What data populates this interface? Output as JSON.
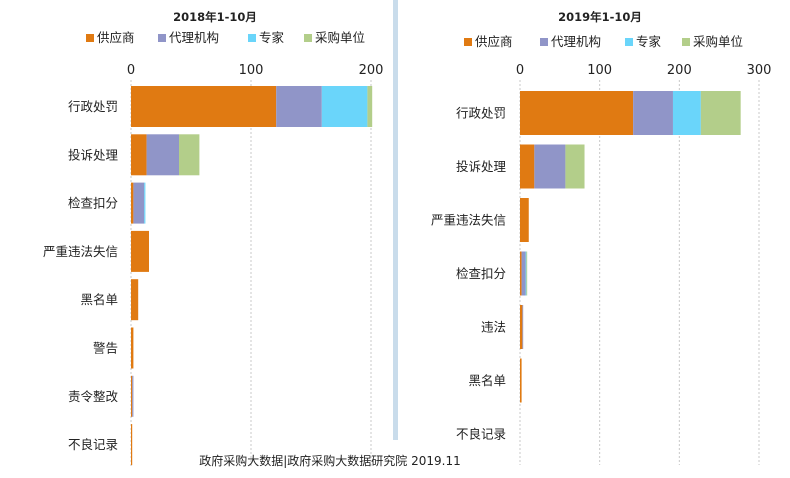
{
  "source_note": "政府采购大数据|政府采购大数据研究院 2019.11",
  "colors": {
    "供应商": "#E07A12",
    "代理机构": "#9095C8",
    "专家": "#6AD5FA",
    "采购单位": "#B3CE8A",
    "divider": "#C9DCEB",
    "grid": "#C8C8C8"
  },
  "chart_data": [
    {
      "type": "bar",
      "orientation": "horizontal",
      "stacked": true,
      "title": "2018年1-10月",
      "xlim": [
        0,
        200
      ],
      "x_ticks": [
        0,
        100,
        200
      ],
      "x_axis_position": "top",
      "legend_position": "top",
      "grid": true,
      "categories": [
        "行政处罚",
        "投诉处理",
        "检查扣分",
        "严重违法失信",
        "黑名单",
        "警告",
        "责令整改",
        "不良记录"
      ],
      "series": [
        {
          "name": "供应商",
          "color_key": "供应商",
          "values": [
            121,
            13,
            2,
            15,
            6,
            2,
            1,
            1
          ]
        },
        {
          "name": "代理机构",
          "color_key": "代理机构",
          "values": [
            38,
            27,
            9,
            0,
            0,
            0,
            1,
            0
          ]
        },
        {
          "name": "专家",
          "color_key": "专家",
          "values": [
            38,
            0,
            1,
            0,
            0,
            0,
            0,
            0
          ]
        },
        {
          "name": "采购单位",
          "color_key": "采购单位",
          "values": [
            4,
            17,
            0,
            0,
            0,
            0,
            0,
            0
          ]
        }
      ]
    },
    {
      "type": "bar",
      "orientation": "horizontal",
      "stacked": true,
      "title": "2019年1-10月",
      "xlim": [
        0,
        300
      ],
      "x_ticks": [
        0,
        100,
        200,
        300
      ],
      "x_axis_position": "top",
      "legend_position": "top",
      "grid": true,
      "categories": [
        "行政处罚",
        "投诉处理",
        "严重违法失信",
        "检查扣分",
        "违法",
        "黑名单",
        "不良记录"
      ],
      "series": [
        {
          "name": "供应商",
          "color_key": "供应商",
          "values": [
            142,
            18,
            11,
            2,
            3,
            2,
            0
          ]
        },
        {
          "name": "代理机构",
          "color_key": "代理机构",
          "values": [
            50,
            39,
            0,
            5,
            1,
            0,
            0
          ]
        },
        {
          "name": "专家",
          "color_key": "专家",
          "values": [
            35,
            0,
            0,
            1,
            0,
            0,
            0
          ]
        },
        {
          "name": "采购单位",
          "color_key": "采购单位",
          "values": [
            50,
            24,
            0,
            1,
            0,
            0,
            0
          ]
        }
      ]
    }
  ]
}
